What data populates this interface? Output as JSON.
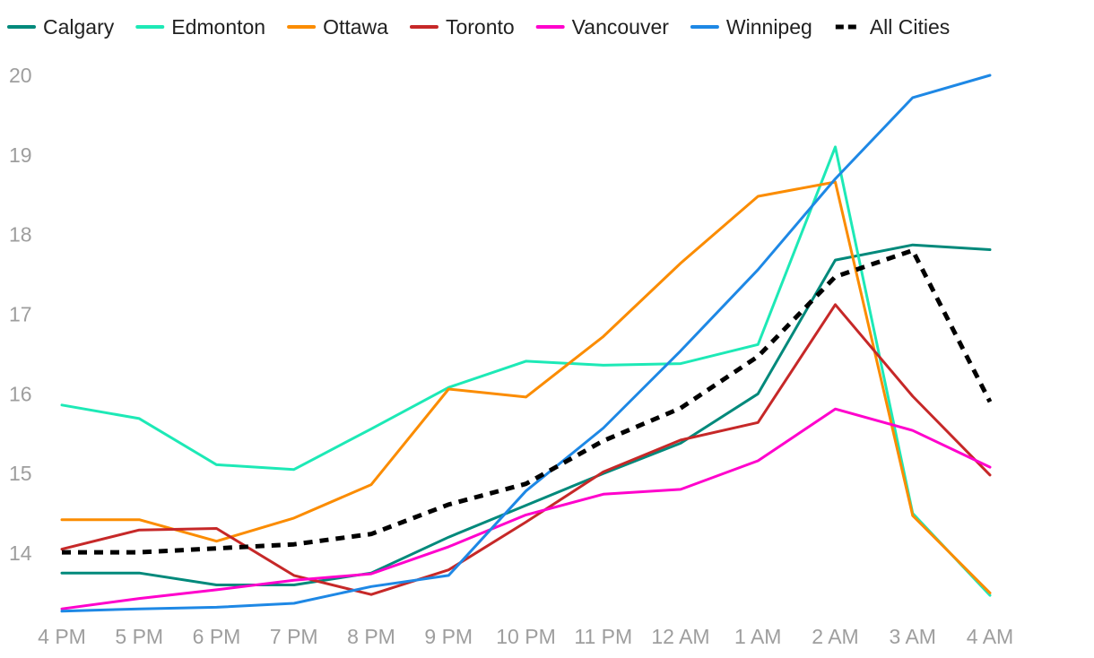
{
  "chart_data": {
    "type": "line",
    "title": "",
    "xlabel": "",
    "ylabel": "",
    "categories": [
      "4 PM",
      "5 PM",
      "6 PM",
      "7 PM",
      "8 PM",
      "9 PM",
      "10 PM",
      "11 PM",
      "12 AM",
      "1 AM",
      "2 AM",
      "3 AM",
      "4 AM"
    ],
    "ylim": [
      13.35,
      20.1
    ],
    "yticks": [
      14,
      15,
      16,
      17,
      18,
      19,
      20
    ],
    "grid": false,
    "legend_position": "top",
    "series": [
      {
        "name": "Calgary",
        "color": "#00897b",
        "dashed": false,
        "values": [
          13.75,
          13.75,
          13.6,
          13.6,
          13.75,
          14.2,
          14.6,
          15.0,
          15.38,
          16.0,
          17.68,
          17.87,
          17.81
        ]
      },
      {
        "name": "Edmonton",
        "color": "#1de9b6",
        "dashed": false,
        "values": [
          15.86,
          15.69,
          15.11,
          15.05,
          15.56,
          16.08,
          16.41,
          16.36,
          16.38,
          16.62,
          19.1,
          14.5,
          13.47
        ]
      },
      {
        "name": "Ottawa",
        "color": "#fb8c00",
        "dashed": false,
        "values": [
          14.42,
          14.42,
          14.15,
          14.44,
          14.86,
          16.06,
          15.96,
          16.72,
          17.64,
          18.48,
          18.66,
          14.47,
          13.5
        ]
      },
      {
        "name": "Toronto",
        "color": "#c62828",
        "dashed": false,
        "values": [
          14.05,
          14.29,
          14.31,
          13.72,
          13.48,
          13.79,
          14.39,
          15.02,
          15.42,
          15.64,
          17.12,
          15.97,
          14.98
        ]
      },
      {
        "name": "Vancouver",
        "color": "#ff00cc",
        "dashed": false,
        "values": [
          13.3,
          13.43,
          13.54,
          13.66,
          13.74,
          14.08,
          14.48,
          14.74,
          14.8,
          15.16,
          15.81,
          15.54,
          15.08
        ]
      },
      {
        "name": "Winnipeg",
        "color": "#1e88e5",
        "dashed": false,
        "values": [
          13.27,
          13.3,
          13.32,
          13.37,
          13.58,
          13.72,
          14.78,
          15.57,
          16.54,
          17.56,
          18.7,
          19.72,
          20.0
        ]
      },
      {
        "name": "All Cities",
        "color": "#000000",
        "dashed": true,
        "values": [
          14.01,
          14.01,
          14.06,
          14.11,
          14.24,
          14.61,
          14.87,
          15.41,
          15.82,
          16.47,
          17.47,
          17.8,
          15.9
        ]
      }
    ]
  }
}
